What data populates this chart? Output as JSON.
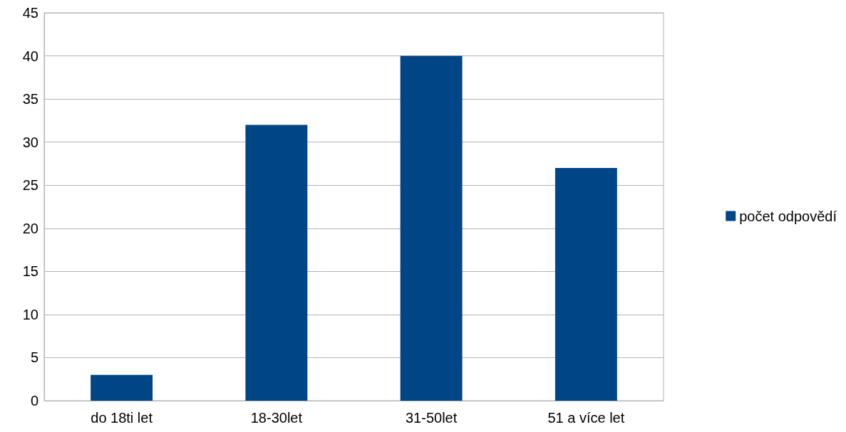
{
  "chart_data": {
    "type": "bar",
    "categories": [
      "do 18ti let",
      "18-30let",
      "31-50let",
      "51 a více let"
    ],
    "series": [
      {
        "name": "počet odpovědí",
        "color": "#004586",
        "values": [
          3,
          32,
          40,
          27
        ]
      }
    ],
    "ylim": [
      0,
      45
    ],
    "yticks": [
      0,
      5,
      10,
      15,
      20,
      25,
      30,
      35,
      40,
      45
    ],
    "grid": "y",
    "legend": "right"
  }
}
